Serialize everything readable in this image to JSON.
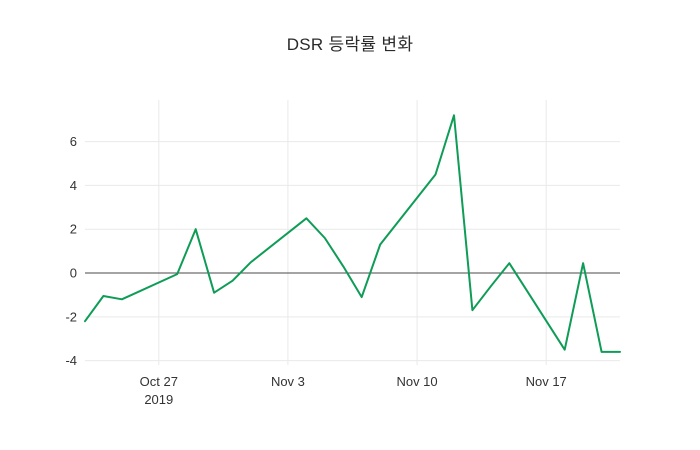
{
  "title": "DSR 등락률 변화",
  "chart_data": {
    "type": "line",
    "title": "DSR 등락률 변화",
    "xlabel": "",
    "ylabel": "",
    "grid": true,
    "background": "#ffffff",
    "grid_color": "#e9e9e9",
    "zero_line": true,
    "zero_line_color": "#4a4a4a",
    "line_color": "#0e9c57",
    "line_width": 2,
    "xlim": [
      "2019-10-23",
      "2019-11-21"
    ],
    "ylim": [
      -4.2,
      7.9
    ],
    "y_ticks": [
      -4,
      -2,
      0,
      2,
      4,
      6
    ],
    "x_ticks": [
      {
        "date": "2019-10-27",
        "label": "Oct 27",
        "sublabel": "2019"
      },
      {
        "date": "2019-11-03",
        "label": "Nov 3",
        "sublabel": ""
      },
      {
        "date": "2019-11-10",
        "label": "Nov 10",
        "sublabel": ""
      },
      {
        "date": "2019-11-17",
        "label": "Nov 17",
        "sublabel": ""
      }
    ],
    "series": [
      {
        "name": "DSR",
        "points": [
          [
            "2019-10-23",
            -2.2
          ],
          [
            "2019-10-24",
            -1.05
          ],
          [
            "2019-10-25",
            -1.2
          ],
          [
            "2019-10-28",
            -0.05
          ],
          [
            "2019-10-29",
            2.0
          ],
          [
            "2019-10-30",
            -0.9
          ],
          [
            "2019-10-31",
            -0.35
          ],
          [
            "2019-11-01",
            0.5
          ],
          [
            "2019-11-04",
            2.5
          ],
          [
            "2019-11-05",
            1.6
          ],
          [
            "2019-11-06",
            0.3
          ],
          [
            "2019-11-07",
            -1.1
          ],
          [
            "2019-11-08",
            1.3
          ],
          [
            "2019-11-11",
            4.5
          ],
          [
            "2019-11-12",
            7.2
          ],
          [
            "2019-11-13",
            -1.7
          ],
          [
            "2019-11-14",
            -0.6
          ],
          [
            "2019-11-15",
            0.45
          ],
          [
            "2019-11-18",
            -3.5
          ],
          [
            "2019-11-19",
            0.45
          ],
          [
            "2019-11-20",
            -3.6
          ],
          [
            "2019-11-21",
            -3.6
          ]
        ]
      }
    ]
  }
}
